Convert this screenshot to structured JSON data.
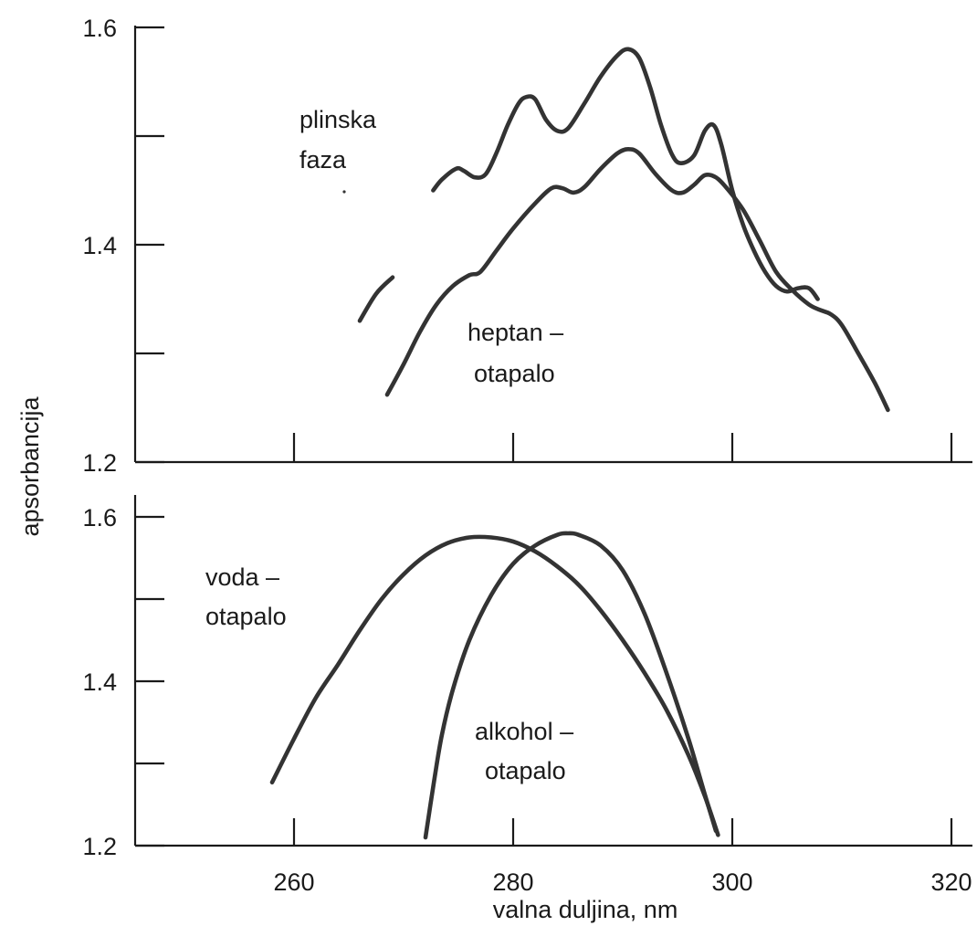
{
  "chart_data": {
    "type": "line",
    "xlabel": "valna duljina, nm",
    "ylabel": "apsorbancija",
    "x_ticks": [
      260,
      280,
      300,
      320
    ],
    "y_ticks": [
      "1.6",
      "1.4",
      "1.2"
    ],
    "xlim": [
      245,
      322
    ],
    "panels": [
      {
        "id": "top",
        "ylim": [
          1.2,
          1.6
        ],
        "series": [
          {
            "name": "plinska faza",
            "segments": [
              [
                [
                  266.0,
                  1.33
                ],
                [
                  267.5,
                  1.355
                ],
                [
                  269.0,
                  1.37
                ]
              ],
              [
                [
                  272.7,
                  1.45
                ],
                [
                  273.5,
                  1.46
                ],
                [
                  274.8,
                  1.47
                ],
                [
                  275.5,
                  1.468
                ],
                [
                  276.5,
                  1.462
                ],
                [
                  277.5,
                  1.465
                ],
                [
                  278.5,
                  1.485
                ],
                [
                  279.5,
                  1.51
                ],
                [
                  280.5,
                  1.53
                ],
                [
                  281.2,
                  1.536
                ],
                [
                  282.0,
                  1.534
                ],
                [
                  283.0,
                  1.515
                ],
                [
                  284.0,
                  1.505
                ],
                [
                  285.0,
                  1.507
                ],
                [
                  286.5,
                  1.53
                ],
                [
                  288.0,
                  1.555
                ],
                [
                  289.5,
                  1.574
                ],
                [
                  290.5,
                  1.58
                ],
                [
                  291.5,
                  1.572
                ],
                [
                  292.5,
                  1.545
                ],
                [
                  293.5,
                  1.51
                ],
                [
                  294.5,
                  1.483
                ],
                [
                  295.3,
                  1.475
                ],
                [
                  296.5,
                  1.482
                ],
                [
                  297.5,
                  1.505
                ],
                [
                  298.3,
                  1.51
                ],
                [
                  299.0,
                  1.492
                ],
                [
                  300.0,
                  1.45
                ],
                [
                  301.0,
                  1.418
                ],
                [
                  302.0,
                  1.394
                ],
                [
                  303.0,
                  1.375
                ],
                [
                  304.0,
                  1.362
                ],
                [
                  305.0,
                  1.357
                ],
                [
                  306.0,
                  1.36
                ],
                [
                  307.0,
                  1.36
                ],
                [
                  307.8,
                  1.35
                ]
              ]
            ]
          },
          {
            "name": "heptan – otapalo",
            "segments": [
              [
                [
                  268.5,
                  1.262
                ],
                [
                  270.0,
                  1.29
                ],
                [
                  271.5,
                  1.32
                ],
                [
                  273.0,
                  1.345
                ],
                [
                  274.5,
                  1.362
                ],
                [
                  276.0,
                  1.372
                ],
                [
                  277.0,
                  1.375
                ],
                [
                  278.5,
                  1.395
                ],
                [
                  280.0,
                  1.415
                ],
                [
                  282.0,
                  1.438
                ],
                [
                  283.5,
                  1.452
                ],
                [
                  284.5,
                  1.452
                ],
                [
                  285.5,
                  1.448
                ],
                [
                  286.5,
                  1.453
                ],
                [
                  288.0,
                  1.47
                ],
                [
                  289.5,
                  1.484
                ],
                [
                  290.5,
                  1.488
                ],
                [
                  291.5,
                  1.484
                ],
                [
                  293.0,
                  1.465
                ],
                [
                  294.5,
                  1.45
                ],
                [
                  295.5,
                  1.448
                ],
                [
                  296.5,
                  1.455
                ],
                [
                  297.5,
                  1.464
                ],
                [
                  298.5,
                  1.462
                ],
                [
                  299.5,
                  1.452
                ],
                [
                  301.0,
                  1.432
                ],
                [
                  302.5,
                  1.404
                ],
                [
                  304.0,
                  1.375
                ],
                [
                  305.5,
                  1.358
                ],
                [
                  307.0,
                  1.345
                ],
                [
                  308.0,
                  1.34
                ],
                [
                  309.0,
                  1.336
                ],
                [
                  310.0,
                  1.326
                ],
                [
                  311.5,
                  1.3
                ],
                [
                  313.0,
                  1.273
                ],
                [
                  314.2,
                  1.248
                ]
              ]
            ]
          }
        ]
      },
      {
        "id": "bottom",
        "ylim": [
          1.2,
          1.6
        ],
        "series": [
          {
            "name": "voda – otapalo",
            "segments": [
              [
                [
                  258.0,
                  1.277
                ],
                [
                  260.0,
                  1.33
                ],
                [
                  262.0,
                  1.38
                ],
                [
                  264.0,
                  1.42
                ],
                [
                  266.0,
                  1.462
                ],
                [
                  268.0,
                  1.5
                ],
                [
                  270.0,
                  1.53
                ],
                [
                  272.0,
                  1.553
                ],
                [
                  274.0,
                  1.568
                ],
                [
                  276.0,
                  1.575
                ],
                [
                  278.0,
                  1.575
                ],
                [
                  280.0,
                  1.57
                ],
                [
                  282.0,
                  1.558
                ],
                [
                  284.0,
                  1.54
                ],
                [
                  286.0,
                  1.517
                ],
                [
                  288.0,
                  1.486
                ],
                [
                  290.0,
                  1.45
                ],
                [
                  292.0,
                  1.41
                ],
                [
                  294.0,
                  1.365
                ],
                [
                  296.0,
                  1.31
                ],
                [
                  297.5,
                  1.26
                ],
                [
                  298.7,
                  1.213
                ]
              ]
            ]
          },
          {
            "name": "alkohol – otapalo",
            "segments": [
              [
                [
                  272.0,
                  1.21
                ],
                [
                  272.8,
                  1.28
                ],
                [
                  273.5,
                  1.335
                ],
                [
                  274.5,
                  1.39
                ],
                [
                  276.0,
                  1.45
                ],
                [
                  278.0,
                  1.505
                ],
                [
                  280.0,
                  1.543
                ],
                [
                  282.0,
                  1.565
                ],
                [
                  284.0,
                  1.578
                ],
                [
                  285.0,
                  1.58
                ],
                [
                  286.0,
                  1.578
                ],
                [
                  288.0,
                  1.565
                ],
                [
                  290.0,
                  1.535
                ],
                [
                  292.0,
                  1.482
                ],
                [
                  294.0,
                  1.41
                ],
                [
                  296.0,
                  1.33
                ],
                [
                  297.5,
                  1.262
                ],
                [
                  298.5,
                  1.218
                ]
              ]
            ]
          }
        ]
      }
    ],
    "annotations": [
      "plinska",
      "faza",
      "heptan –",
      "otapalo",
      "voda –",
      "otapalo",
      "alkohol –",
      "otapalo"
    ]
  }
}
